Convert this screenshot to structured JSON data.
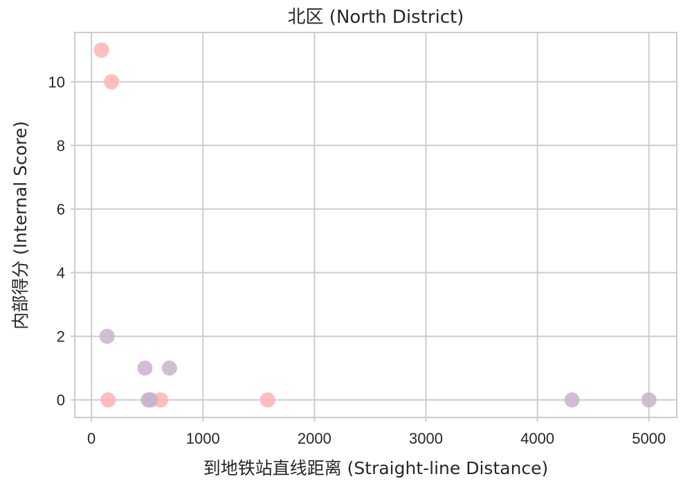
{
  "chart_data": {
    "type": "scatter",
    "title": "北区 (North District)",
    "xlabel": "到地铁站直线距离 (Straight-line Distance)",
    "ylabel": "内部得分 (Internal Score)",
    "xlim": [
      -150,
      5250
    ],
    "ylim": [
      -0.55,
      11.55
    ],
    "x_ticks": [
      0,
      1000,
      2000,
      3000,
      4000,
      5000
    ],
    "x_tick_labels": [
      "0",
      "1000",
      "2000",
      "3000",
      "4000",
      "5000"
    ],
    "y_ticks": [
      0,
      2,
      4,
      6,
      8,
      10
    ],
    "y_tick_labels": [
      "0",
      "2",
      "4",
      "6",
      "8",
      "10"
    ],
    "grid": true,
    "legend": "none",
    "series": [
      {
        "color": "#ffb3b3",
        "points": [
          {
            "x": 90,
            "y": 11
          },
          {
            "x": 180,
            "y": 10
          },
          {
            "x": 150,
            "y": 0
          },
          {
            "x": 620,
            "y": 0
          },
          {
            "x": 1580,
            "y": 0
          }
        ]
      },
      {
        "color": "#c9b3cc",
        "points": [
          {
            "x": 140,
            "y": 2
          },
          {
            "x": 480,
            "y": 1
          },
          {
            "x": 700,
            "y": 1
          },
          {
            "x": 510,
            "y": 0
          },
          {
            "x": 530,
            "y": 0
          },
          {
            "x": 4310,
            "y": 0
          },
          {
            "x": 5000,
            "y": 0
          }
        ]
      }
    ]
  }
}
